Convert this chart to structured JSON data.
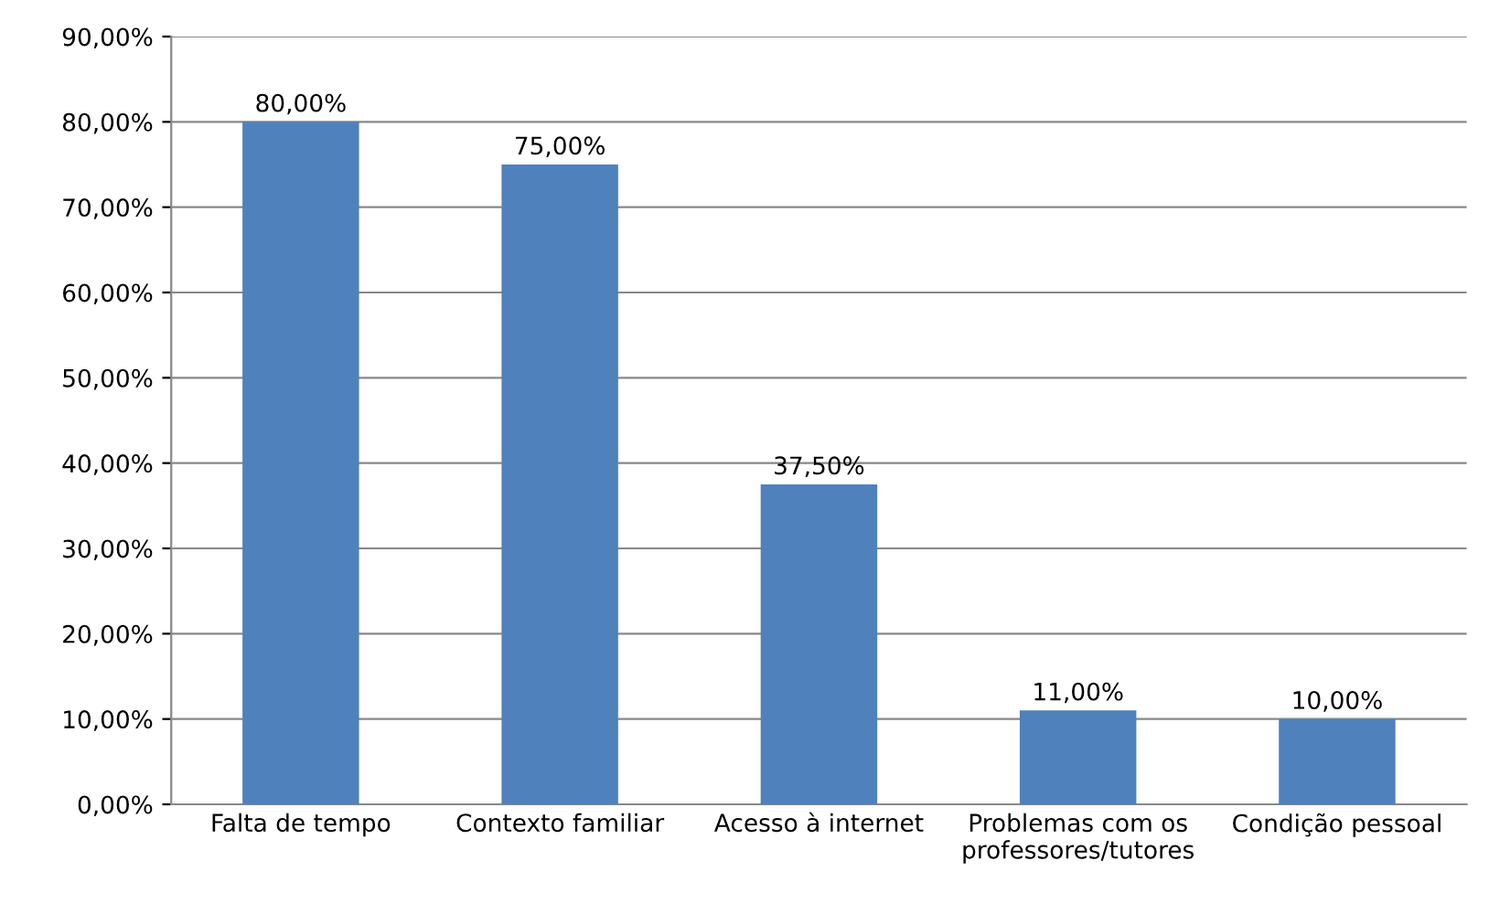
{
  "chart_data": {
    "type": "bar",
    "categories": [
      "Falta de tempo",
      "Contexto familiar",
      "Acesso à internet",
      "Problemas com os\nprofessores/tutores",
      "Condição pessoal"
    ],
    "values": [
      80,
      75,
      37.5,
      11,
      10
    ],
    "value_labels": [
      "80,00%",
      "75,00%",
      "37,50%",
      "11,00%",
      "10,00%"
    ],
    "color": "#4f81bd",
    "ylim": [
      0,
      90
    ],
    "yticks": [
      {
        "value": 0,
        "label": "0,00%"
      },
      {
        "value": 10,
        "label": "10,00%"
      },
      {
        "value": 20,
        "label": "20,00%"
      },
      {
        "value": 30,
        "label": "30,00%"
      },
      {
        "value": 40,
        "label": "40,00%"
      },
      {
        "value": 50,
        "label": "50,00%"
      },
      {
        "value": 60,
        "label": "60,00%"
      },
      {
        "value": 70,
        "label": "70,00%"
      },
      {
        "value": 80,
        "label": "80,00%"
      },
      {
        "value": 90,
        "label": "90,00%"
      }
    ],
    "grid": "y",
    "legend": false
  }
}
